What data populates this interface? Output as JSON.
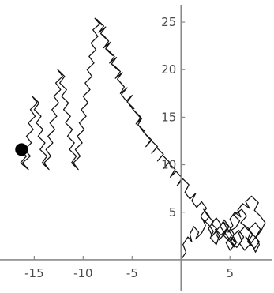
{
  "chart_data": {
    "type": "line",
    "title": "",
    "xlabel": "",
    "ylabel": "",
    "xlim": [
      -18.5,
      9.5
    ],
    "ylim": [
      -2,
      26.5
    ],
    "x_ticks": [
      -15,
      -10,
      -5,
      5
    ],
    "y_ticks": [
      5,
      10,
      15,
      20,
      25
    ],
    "x_tick_labels": [
      "-15",
      "-10",
      "-5",
      "5"
    ],
    "y_tick_labels": [
      "5",
      "10",
      "15",
      "20",
      "25"
    ],
    "grid": false,
    "legend": "none",
    "series": [
      {
        "x": [
          0.0,
          0.5,
          0.2,
          0.7,
          1.1,
          0.9,
          1.3,
          1.8,
          1.5,
          2.1,
          2.5,
          2.2,
          2.8,
          3.3,
          3.0,
          3.6,
          3.9,
          3.5,
          4.1,
          4.7,
          4.3,
          5.0,
          5.4,
          5.1,
          5.7,
          6.2,
          5.9,
          6.5,
          7.1,
          6.8,
          7.3,
          7.6,
          8.0,
          7.7,
          8.2,
          8.6,
          8.1,
          7.5,
          7.9,
          7.2,
          6.6,
          7.0,
          6.3,
          5.8,
          6.1,
          5.5,
          5.0,
          5.3,
          4.8,
          5.6,
          6.0,
          5.4,
          6.2,
          6.7,
          6.1,
          6.9,
          7.3,
          6.8,
          7.5,
          8.0,
          7.4,
          6.9,
          7.6,
          8.1,
          7.7,
          7.2,
          6.6,
          7.1,
          6.5,
          6.0,
          6.4,
          5.9,
          5.3,
          5.7,
          5.1,
          5.6,
          5.0,
          4.6,
          5.2,
          4.7,
          4.3,
          4.9,
          5.5,
          5.0,
          4.5,
          4.9,
          4.4,
          4.0,
          4.5,
          3.9,
          3.5,
          4.1,
          3.6,
          3.1,
          3.7,
          3.2,
          2.8,
          3.3,
          2.7,
          2.3,
          2.9,
          2.4,
          2.0,
          2.6,
          2.1,
          1.6,
          1.1,
          1.5,
          0.9,
          0.4,
          0.8,
          0.2,
          -0.4,
          0.1,
          -0.5,
          -1.1,
          -0.6,
          -1.3,
          -1.8,
          -1.2,
          -1.9,
          -2.4,
          -1.8,
          -2.5,
          -3.0,
          -2.4,
          -3.1,
          -3.6,
          -3.0,
          -3.7,
          -3.2,
          -3.8,
          -4.3,
          -3.7,
          -4.4,
          -4.0,
          -4.6,
          -4.1,
          -4.8,
          -4.2,
          -4.9,
          -5.4,
          -4.8,
          -5.5,
          -5.0,
          -5.6,
          -6.1,
          -5.5,
          -6.2,
          -5.8,
          -6.4,
          -5.9,
          -6.5,
          -6.0,
          -6.7,
          -6.2,
          -6.9,
          -6.4,
          -7.1,
          -6.6,
          -7.3,
          -6.8,
          -7.5,
          -7.0,
          -7.7,
          -7.2,
          -7.9,
          -7.4,
          -8.0,
          -7.5,
          -8.2,
          -7.7,
          -8.4,
          -7.9,
          -8.6,
          -8.1,
          -8.8,
          -8.3,
          -9.0,
          -8.5,
          -9.2,
          -8.7,
          -9.4,
          -8.9,
          -9.6,
          -9.1,
          -9.8,
          -9.3,
          -10.0,
          -9.5,
          -10.2,
          -9.7,
          -10.4,
          -9.9,
          -10.6,
          -10.1,
          -10.8,
          -10.3,
          -11.0,
          -10.5,
          -11.2,
          -10.7,
          -11.4,
          -10.9,
          -11.6,
          -11.1,
          -11.8,
          -11.3,
          -12.0,
          -11.5,
          -12.2,
          -11.7,
          -12.4,
          -11.9,
          -12.6,
          -12.1,
          -12.8,
          -12.3,
          -13.0,
          -12.5,
          -13.2,
          -12.7,
          -13.4,
          -12.9,
          -13.6,
          -13.1,
          -13.8,
          -13.3,
          -14.0,
          -13.5,
          -14.2,
          -13.7,
          -14.4,
          -13.9,
          -14.6,
          -14.1,
          -14.8,
          -14.3,
          -15.0,
          -14.5,
          -15.2,
          -14.7,
          -15.4,
          -14.9,
          -15.6,
          -15.1,
          -15.8,
          -15.3,
          -16.0,
          -15.4,
          -16.2,
          -15.6,
          -16.4,
          -15.8,
          -16.6,
          -16.0,
          -16.3
        ],
        "y": [
          0.0,
          0.8,
          1.6,
          2.4,
          1.9,
          2.7,
          3.5,
          2.9,
          2.2,
          2.8,
          3.6,
          4.3,
          3.7,
          3.0,
          2.3,
          1.6,
          2.5,
          3.2,
          2.6,
          3.3,
          4.0,
          3.4,
          2.7,
          1.9,
          1.3,
          2.0,
          2.8,
          3.5,
          2.9,
          2.1,
          1.5,
          0.8,
          1.6,
          2.4,
          3.1,
          3.9,
          4.6,
          5.2,
          6.0,
          6.7,
          6.1,
          5.4,
          5.9,
          5.2,
          4.5,
          5.0,
          4.3,
          3.6,
          2.9,
          3.4,
          4.1,
          4.7,
          5.3,
          4.6,
          3.9,
          3.3,
          2.6,
          1.9,
          1.2,
          1.9,
          2.6,
          3.2,
          3.9,
          3.2,
          2.5,
          1.8,
          2.4,
          1.7,
          1.0,
          1.7,
          2.4,
          3.1,
          2.5,
          1.8,
          2.4,
          1.7,
          1.0,
          1.8,
          2.6,
          3.3,
          2.6,
          2.0,
          1.3,
          2.1,
          2.8,
          3.5,
          4.2,
          3.5,
          2.8,
          2.1,
          2.9,
          3.7,
          4.4,
          3.8,
          3.2,
          2.5,
          3.3,
          4.0,
          4.7,
          5.3,
          4.6,
          3.9,
          4.6,
          5.4,
          6.1,
          5.5,
          6.2,
          7.0,
          6.4,
          7.1,
          7.9,
          8.5,
          7.8,
          8.6,
          9.3,
          8.7,
          9.5,
          10.2,
          9.6,
          10.3,
          11.0,
          10.4,
          11.1,
          11.8,
          11.2,
          11.9,
          12.6,
          11.9,
          12.6,
          13.3,
          12.7,
          13.4,
          14.1,
          13.5,
          14.2,
          14.9,
          14.3,
          15.0,
          15.7,
          15.0,
          15.8,
          16.5,
          15.9,
          16.6,
          17.3,
          16.7,
          17.4,
          18.1,
          17.5,
          18.2,
          18.9,
          18.3,
          19.0,
          19.7,
          19.1,
          19.8,
          20.5,
          19.9,
          20.6,
          21.3,
          20.7,
          21.4,
          22.1,
          21.5,
          22.2,
          22.9,
          22.3,
          23.0,
          23.7,
          23.1,
          23.8,
          24.5,
          23.9,
          24.6,
          25.3,
          24.7,
          25.4,
          24.8,
          24.2,
          23.5,
          22.8,
          22.1,
          21.4,
          20.7,
          20.0,
          19.3,
          18.6,
          17.9,
          17.2,
          16.5,
          15.8,
          15.1,
          14.4,
          13.7,
          13.0,
          12.3,
          11.6,
          10.9,
          10.2,
          9.5,
          10.2,
          10.9,
          11.6,
          12.3,
          13.0,
          13.7,
          14.4,
          15.1,
          15.8,
          16.5,
          17.2,
          17.9,
          18.6,
          19.3,
          20.0,
          19.3,
          18.6,
          17.9,
          17.2,
          16.5,
          15.8,
          15.1,
          14.4,
          13.7,
          13.0,
          12.3,
          11.6,
          10.9,
          10.2,
          9.5,
          10.2,
          10.9,
          11.6,
          12.3,
          13.0,
          13.7,
          14.4,
          15.1,
          15.8,
          16.5,
          17.2,
          16.5,
          15.8,
          15.1,
          14.4,
          13.7,
          13.0,
          12.3,
          11.6,
          10.9,
          10.2,
          9.5,
          10.2,
          10.9,
          11.6,
          11.2,
          11.6
        ]
      }
    ],
    "end_marker": {
      "x": -16.3,
      "y": 11.6
    },
    "colors": {
      "path": "#111111",
      "axis": "#8a8a8a",
      "tick_label": "#4a4a4a",
      "marker": "#000000"
    }
  }
}
